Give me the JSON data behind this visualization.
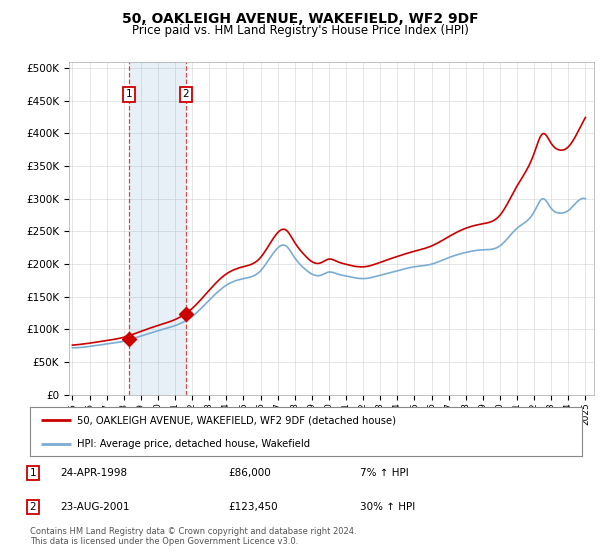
{
  "title": "50, OAKLEIGH AVENUE, WAKEFIELD, WF2 9DF",
  "subtitle": "Price paid vs. HM Land Registry's House Price Index (HPI)",
  "ylabel_ticks": [
    "£0",
    "£50K",
    "£100K",
    "£150K",
    "£200K",
    "£250K",
    "£300K",
    "£350K",
    "£400K",
    "£450K",
    "£500K"
  ],
  "ytick_values": [
    0,
    50000,
    100000,
    150000,
    200000,
    250000,
    300000,
    350000,
    400000,
    450000,
    500000
  ],
  "ylim": [
    0,
    510000
  ],
  "xlim_start": 1994.8,
  "xlim_end": 2025.5,
  "sale1_x": 1998.31,
  "sale1_y": 86000,
  "sale2_x": 2001.64,
  "sale2_y": 123450,
  "sale_color": "#cc0000",
  "hpi_color": "#7aadd4",
  "legend_label_red": "50, OAKLEIGH AVENUE, WAKEFIELD, WF2 9DF (detached house)",
  "legend_label_blue": "HPI: Average price, detached house, Wakefield",
  "table_row1": [
    "1",
    "24-APR-1998",
    "£86,000",
    "7% ↑ HPI"
  ],
  "table_row2": [
    "2",
    "23-AUG-2001",
    "£123,450",
    "30% ↑ HPI"
  ],
  "footer": "Contains HM Land Registry data © Crown copyright and database right 2024.\nThis data is licensed under the Open Government Licence v3.0.",
  "bg_color": "#ffffff",
  "grid_color": "#cccccc"
}
